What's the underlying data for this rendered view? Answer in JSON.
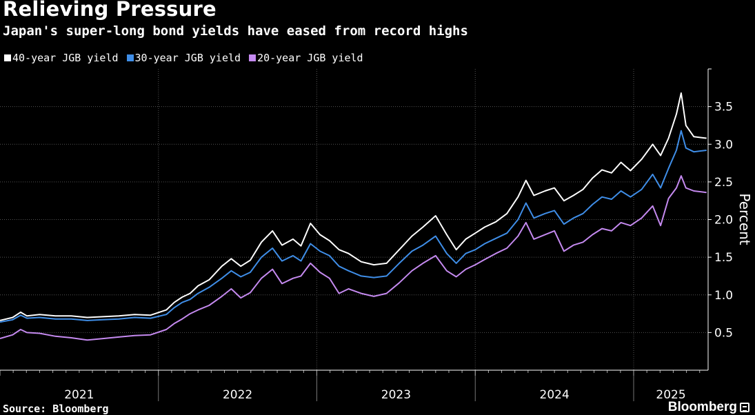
{
  "chart_data": {
    "type": "line",
    "title": "Relieving Pressure",
    "subtitle": "Japan's super-long bond yields have eased from record highs",
    "ylabel": "Percent",
    "ylim": [
      0,
      4
    ],
    "yticks": [
      "0.5",
      "1.0",
      "1.5",
      "2.0",
      "2.5",
      "3.0",
      "3.5"
    ],
    "yticks_values": [
      0.5,
      1.0,
      1.5,
      2.0,
      2.5,
      3.0,
      3.5
    ],
    "xlim": [
      2021.0,
      2025.47
    ],
    "x_tick_labels": [
      "2021",
      "2022",
      "2023",
      "2024",
      "2025"
    ],
    "grid": true,
    "legend_position": "top-left",
    "series": [
      {
        "name": "40-year JGB yield",
        "color": "#ffffff",
        "points": [
          [
            2021.0,
            0.66
          ],
          [
            2021.08,
            0.7
          ],
          [
            2021.13,
            0.77
          ],
          [
            2021.17,
            0.72
          ],
          [
            2021.25,
            0.74
          ],
          [
            2021.35,
            0.72
          ],
          [
            2021.45,
            0.72
          ],
          [
            2021.55,
            0.7
          ],
          [
            2021.65,
            0.71
          ],
          [
            2021.75,
            0.72
          ],
          [
            2021.85,
            0.74
          ],
          [
            2021.95,
            0.73
          ],
          [
            2022.05,
            0.8
          ],
          [
            2022.1,
            0.9
          ],
          [
            2022.15,
            0.97
          ],
          [
            2022.2,
            1.02
          ],
          [
            2022.25,
            1.12
          ],
          [
            2022.32,
            1.2
          ],
          [
            2022.4,
            1.38
          ],
          [
            2022.46,
            1.48
          ],
          [
            2022.52,
            1.38
          ],
          [
            2022.58,
            1.46
          ],
          [
            2022.65,
            1.7
          ],
          [
            2022.72,
            1.85
          ],
          [
            2022.78,
            1.66
          ],
          [
            2022.85,
            1.74
          ],
          [
            2022.9,
            1.65
          ],
          [
            2022.96,
            1.95
          ],
          [
            2023.02,
            1.8
          ],
          [
            2023.08,
            1.72
          ],
          [
            2023.14,
            1.6
          ],
          [
            2023.2,
            1.55
          ],
          [
            2023.28,
            1.44
          ],
          [
            2023.36,
            1.4
          ],
          [
            2023.44,
            1.42
          ],
          [
            2023.52,
            1.6
          ],
          [
            2023.6,
            1.78
          ],
          [
            2023.67,
            1.9
          ],
          [
            2023.75,
            2.05
          ],
          [
            2023.82,
            1.8
          ],
          [
            2023.88,
            1.6
          ],
          [
            2023.94,
            1.74
          ],
          [
            2024.0,
            1.82
          ],
          [
            2024.06,
            1.9
          ],
          [
            2024.13,
            1.97
          ],
          [
            2024.2,
            2.08
          ],
          [
            2024.27,
            2.3
          ],
          [
            2024.32,
            2.52
          ],
          [
            2024.37,
            2.32
          ],
          [
            2024.44,
            2.38
          ],
          [
            2024.5,
            2.42
          ],
          [
            2024.56,
            2.25
          ],
          [
            2024.62,
            2.32
          ],
          [
            2024.68,
            2.4
          ],
          [
            2024.74,
            2.55
          ],
          [
            2024.8,
            2.66
          ],
          [
            2024.86,
            2.62
          ],
          [
            2024.92,
            2.76
          ],
          [
            2024.98,
            2.65
          ],
          [
            2025.05,
            2.8
          ],
          [
            2025.12,
            3.0
          ],
          [
            2025.17,
            2.85
          ],
          [
            2025.22,
            3.08
          ],
          [
            2025.27,
            3.4
          ],
          [
            2025.3,
            3.68
          ],
          [
            2025.33,
            3.25
          ],
          [
            2025.38,
            3.1
          ],
          [
            2025.46,
            3.08
          ]
        ]
      },
      {
        "name": "30-year JGB yield",
        "color": "#3f8ee8",
        "points": [
          [
            2021.0,
            0.64
          ],
          [
            2021.08,
            0.67
          ],
          [
            2021.13,
            0.73
          ],
          [
            2021.17,
            0.69
          ],
          [
            2021.25,
            0.7
          ],
          [
            2021.35,
            0.68
          ],
          [
            2021.45,
            0.68
          ],
          [
            2021.55,
            0.66
          ],
          [
            2021.65,
            0.67
          ],
          [
            2021.75,
            0.68
          ],
          [
            2021.85,
            0.7
          ],
          [
            2021.95,
            0.69
          ],
          [
            2022.05,
            0.74
          ],
          [
            2022.1,
            0.83
          ],
          [
            2022.15,
            0.9
          ],
          [
            2022.2,
            0.94
          ],
          [
            2022.25,
            1.02
          ],
          [
            2022.32,
            1.1
          ],
          [
            2022.4,
            1.22
          ],
          [
            2022.46,
            1.32
          ],
          [
            2022.52,
            1.24
          ],
          [
            2022.58,
            1.3
          ],
          [
            2022.65,
            1.5
          ],
          [
            2022.72,
            1.62
          ],
          [
            2022.78,
            1.45
          ],
          [
            2022.85,
            1.52
          ],
          [
            2022.9,
            1.45
          ],
          [
            2022.96,
            1.68
          ],
          [
            2023.02,
            1.58
          ],
          [
            2023.08,
            1.52
          ],
          [
            2023.14,
            1.38
          ],
          [
            2023.2,
            1.32
          ],
          [
            2023.28,
            1.25
          ],
          [
            2023.36,
            1.23
          ],
          [
            2023.44,
            1.25
          ],
          [
            2023.52,
            1.42
          ],
          [
            2023.6,
            1.58
          ],
          [
            2023.67,
            1.66
          ],
          [
            2023.75,
            1.78
          ],
          [
            2023.82,
            1.55
          ],
          [
            2023.88,
            1.42
          ],
          [
            2023.94,
            1.55
          ],
          [
            2024.0,
            1.6
          ],
          [
            2024.06,
            1.68
          ],
          [
            2024.13,
            1.75
          ],
          [
            2024.2,
            1.82
          ],
          [
            2024.27,
            2.0
          ],
          [
            2024.32,
            2.22
          ],
          [
            2024.37,
            2.02
          ],
          [
            2024.44,
            2.08
          ],
          [
            2024.5,
            2.12
          ],
          [
            2024.56,
            1.94
          ],
          [
            2024.62,
            2.02
          ],
          [
            2024.68,
            2.08
          ],
          [
            2024.74,
            2.2
          ],
          [
            2024.8,
            2.3
          ],
          [
            2024.86,
            2.27
          ],
          [
            2024.92,
            2.38
          ],
          [
            2024.98,
            2.3
          ],
          [
            2025.05,
            2.4
          ],
          [
            2025.12,
            2.6
          ],
          [
            2025.17,
            2.42
          ],
          [
            2025.22,
            2.68
          ],
          [
            2025.27,
            2.92
          ],
          [
            2025.3,
            3.18
          ],
          [
            2025.33,
            2.95
          ],
          [
            2025.38,
            2.9
          ],
          [
            2025.46,
            2.92
          ]
        ]
      },
      {
        "name": "20-year JGB yield",
        "color": "#c58af0",
        "points": [
          [
            2021.0,
            0.42
          ],
          [
            2021.08,
            0.47
          ],
          [
            2021.13,
            0.54
          ],
          [
            2021.17,
            0.5
          ],
          [
            2021.25,
            0.49
          ],
          [
            2021.35,
            0.45
          ],
          [
            2021.45,
            0.43
          ],
          [
            2021.55,
            0.4
          ],
          [
            2021.65,
            0.42
          ],
          [
            2021.75,
            0.44
          ],
          [
            2021.85,
            0.46
          ],
          [
            2021.95,
            0.47
          ],
          [
            2022.05,
            0.54
          ],
          [
            2022.1,
            0.62
          ],
          [
            2022.15,
            0.68
          ],
          [
            2022.2,
            0.75
          ],
          [
            2022.25,
            0.8
          ],
          [
            2022.32,
            0.86
          ],
          [
            2022.4,
            0.98
          ],
          [
            2022.46,
            1.08
          ],
          [
            2022.52,
            0.96
          ],
          [
            2022.58,
            1.03
          ],
          [
            2022.65,
            1.22
          ],
          [
            2022.72,
            1.34
          ],
          [
            2022.78,
            1.15
          ],
          [
            2022.85,
            1.22
          ],
          [
            2022.9,
            1.25
          ],
          [
            2022.96,
            1.42
          ],
          [
            2023.02,
            1.3
          ],
          [
            2023.08,
            1.22
          ],
          [
            2023.14,
            1.02
          ],
          [
            2023.2,
            1.08
          ],
          [
            2023.28,
            1.02
          ],
          [
            2023.36,
            0.98
          ],
          [
            2023.44,
            1.02
          ],
          [
            2023.52,
            1.16
          ],
          [
            2023.6,
            1.32
          ],
          [
            2023.67,
            1.42
          ],
          [
            2023.75,
            1.52
          ],
          [
            2023.82,
            1.32
          ],
          [
            2023.88,
            1.24
          ],
          [
            2023.94,
            1.34
          ],
          [
            2024.0,
            1.4
          ],
          [
            2024.06,
            1.47
          ],
          [
            2024.13,
            1.55
          ],
          [
            2024.2,
            1.62
          ],
          [
            2024.27,
            1.78
          ],
          [
            2024.32,
            1.96
          ],
          [
            2024.37,
            1.74
          ],
          [
            2024.44,
            1.8
          ],
          [
            2024.5,
            1.85
          ],
          [
            2024.56,
            1.58
          ],
          [
            2024.62,
            1.66
          ],
          [
            2024.68,
            1.7
          ],
          [
            2024.74,
            1.8
          ],
          [
            2024.8,
            1.88
          ],
          [
            2024.86,
            1.85
          ],
          [
            2024.92,
            1.96
          ],
          [
            2024.98,
            1.92
          ],
          [
            2025.05,
            2.02
          ],
          [
            2025.12,
            2.18
          ],
          [
            2025.17,
            1.92
          ],
          [
            2025.22,
            2.28
          ],
          [
            2025.27,
            2.42
          ],
          [
            2025.3,
            2.58
          ],
          [
            2025.33,
            2.42
          ],
          [
            2025.38,
            2.38
          ],
          [
            2025.46,
            2.36
          ]
        ]
      }
    ]
  },
  "source_label": "Source: Bloomberg",
  "brand_label": "Bloomberg"
}
